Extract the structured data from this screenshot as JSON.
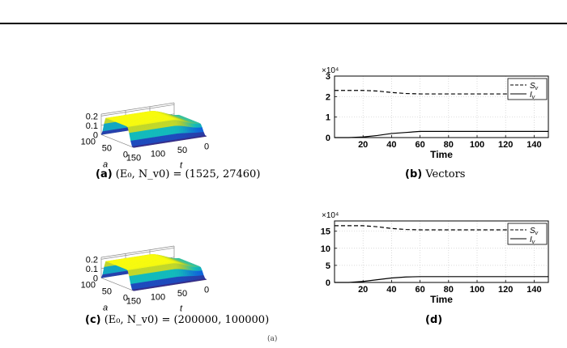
{
  "panels": [
    {
      "caption_tag": "(a)",
      "caption_text": "(E₀, N_v0) = (1525, 27460)"
    },
    {
      "caption_tag": "(b)",
      "caption_text": "Vectors"
    },
    {
      "caption_tag": "(c)",
      "caption_text": "(E₀, N_v0) = (200000, 100000)"
    },
    {
      "caption_tag": "(d)",
      "caption_text": ""
    }
  ],
  "bottom_fragment": "(a)",
  "chart_data": [
    {
      "type": "surface",
      "z_ticks": [
        "0.2",
        "0.1",
        "0"
      ],
      "a_ticks": [
        "100",
        "50",
        "0"
      ],
      "t_ticks": [
        "150",
        "100",
        "50",
        "0"
      ],
      "xlabel": "t",
      "ylabel": "a",
      "colormap": "parula",
      "peak": 0.2
    },
    {
      "type": "line",
      "exponent_label": "×10⁴",
      "xlabel": "Time",
      "xlim": [
        0,
        150
      ],
      "ylim": [
        0,
        3
      ],
      "x_ticks": [
        20,
        40,
        60,
        80,
        100,
        120,
        140
      ],
      "y_ticks": [
        0,
        1,
        2,
        3
      ],
      "grid": true,
      "legend_position": "top-right",
      "series": [
        {
          "name": "S_v",
          "style": "dashed",
          "x": [
            0,
            10,
            20,
            30,
            40,
            50,
            60,
            70,
            80,
            90,
            100,
            110,
            120,
            130,
            140,
            150
          ],
          "values": [
            2.3,
            2.3,
            2.3,
            2.27,
            2.2,
            2.15,
            2.13,
            2.13,
            2.13,
            2.13,
            2.13,
            2.13,
            2.13,
            2.13,
            2.13,
            2.13
          ]
        },
        {
          "name": "I_v",
          "style": "solid",
          "x": [
            0,
            10,
            20,
            30,
            40,
            50,
            60,
            70,
            80,
            90,
            100,
            110,
            120,
            130,
            140,
            150
          ],
          "values": [
            0,
            0,
            0.03,
            0.1,
            0.2,
            0.25,
            0.3,
            0.3,
            0.3,
            0.3,
            0.3,
            0.3,
            0.3,
            0.3,
            0.3,
            0.3
          ]
        }
      ]
    },
    {
      "type": "surface",
      "z_ticks": [
        "0.2",
        "0.1",
        "0"
      ],
      "a_ticks": [
        "100",
        "50",
        "0"
      ],
      "t_ticks": [
        "150",
        "100",
        "50",
        "0"
      ],
      "xlabel": "t",
      "ylabel": "a",
      "colormap": "parula",
      "peak": 0.2
    },
    {
      "type": "line",
      "exponent_label": "×10⁴",
      "xlabel": "Time",
      "xlim": [
        0,
        150
      ],
      "ylim": [
        0,
        18
      ],
      "x_ticks": [
        20,
        40,
        60,
        80,
        100,
        120,
        140
      ],
      "y_ticks": [
        0,
        5,
        10,
        15
      ],
      "grid": true,
      "legend_position": "top-right",
      "series": [
        {
          "name": "S_v",
          "style": "dashed",
          "x": [
            0,
            10,
            20,
            30,
            40,
            50,
            60,
            70,
            80,
            90,
            100,
            110,
            120,
            130,
            140,
            150
          ],
          "values": [
            16.6,
            16.6,
            16.6,
            16.3,
            15.8,
            15.5,
            15.4,
            15.4,
            15.4,
            15.4,
            15.4,
            15.4,
            15.4,
            15.4,
            15.4,
            15.4
          ]
        },
        {
          "name": "I_v",
          "style": "solid",
          "x": [
            0,
            10,
            20,
            30,
            40,
            50,
            60,
            70,
            80,
            90,
            100,
            110,
            120,
            130,
            140,
            150
          ],
          "values": [
            0,
            0,
            0.3,
            0.8,
            1.3,
            1.6,
            1.7,
            1.7,
            1.7,
            1.7,
            1.7,
            1.7,
            1.7,
            1.7,
            1.7,
            1.7
          ]
        }
      ]
    }
  ]
}
